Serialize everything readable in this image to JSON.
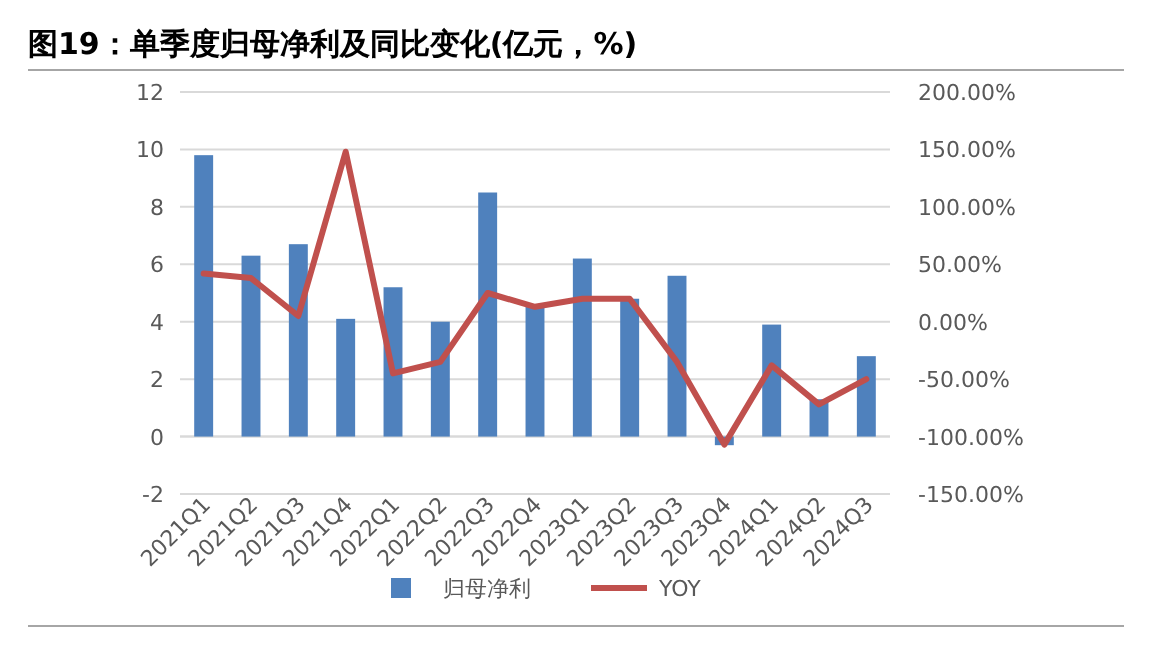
{
  "chart_data": {
    "type": "bar",
    "title": "图19：单季度归母净利及同比变化(亿元，%)",
    "categories": [
      "2021Q1",
      "2021Q2",
      "2021Q3",
      "2021Q4",
      "2022Q1",
      "2022Q2",
      "2022Q3",
      "2022Q4",
      "2023Q1",
      "2023Q2",
      "2023Q3",
      "2023Q4",
      "2024Q1",
      "2024Q2",
      "2024Q3"
    ],
    "series": [
      {
        "name": "归母净利",
        "color": "#4f81bd",
        "values": [
          9.8,
          6.3,
          6.7,
          4.1,
          5.2,
          4.0,
          8.5,
          4.6,
          6.2,
          4.8,
          5.6,
          -0.3,
          3.9,
          1.3,
          2.8
        ]
      },
      {
        "name": "YOY",
        "type": "line",
        "axis": "y2",
        "color": "#c0504d",
        "values": [
          42,
          38,
          5,
          148,
          -45,
          -35,
          25,
          13,
          20,
          20,
          -35,
          -107,
          -38,
          -72,
          -50
        ]
      }
    ],
    "ylim": [
      -2,
      12
    ],
    "yticks": [
      -2,
      0,
      2,
      4,
      6,
      8,
      10,
      12
    ],
    "y2lim": [
      -150,
      200
    ],
    "y2ticks": [
      {
        "value": -150,
        "label": "-150.00%"
      },
      {
        "value": -100,
        "label": "-100.00%"
      },
      {
        "value": -50,
        "label": "-50.00%"
      },
      {
        "value": 0,
        "label": "0.00%"
      },
      {
        "value": 50,
        "label": "50.00%"
      },
      {
        "value": 100,
        "label": "100.00%"
      },
      {
        "value": 150,
        "label": "150.00%"
      },
      {
        "value": 200,
        "label": "200.00%"
      }
    ],
    "grid": "y",
    "legend": "bottom",
    "marker": "none"
  }
}
